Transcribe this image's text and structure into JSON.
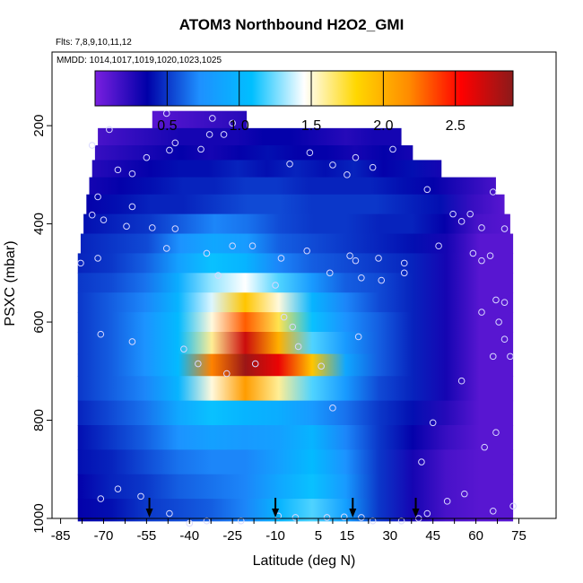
{
  "chart_data": {
    "type": "heatmap",
    "title": "ATOM3 Northbound H2O2_GMI",
    "flights_label": "Flts: 7,8,9,10,11,12",
    "dates_label": "MMDD: 1014,1017,1019,1020,1023,1025",
    "xlabel": "Latitude (deg N)",
    "ylabel": "PSXC (mbar)",
    "xlim": [
      -88,
      88
    ],
    "ylim": [
      1000,
      50
    ],
    "y_reversed": true,
    "x_ticks": [
      -85,
      -70,
      -55,
      -40,
      -25,
      -10,
      5,
      15,
      30,
      45,
      60,
      75
    ],
    "y_ticks": [
      200,
      400,
      600,
      800,
      1000
    ],
    "colorbar": {
      "min": 0.0,
      "max": 2.9,
      "ticks": [
        0.5,
        1.0,
        1.5,
        2.0,
        2.5
      ],
      "tick_labels": [
        "0.5",
        "1.0",
        "1.5",
        "2.0",
        "2.5"
      ],
      "colors": [
        "#7a1fe0",
        "#0000a8",
        "#1e90ff",
        "#00bfff",
        "#ffffff",
        "#ffd700",
        "#ff8c00",
        "#ff0000",
        "#8b1a1a"
      ]
    },
    "grid": false,
    "surface_markers_lat": [
      -54,
      -10,
      17,
      39
    ],
    "field": {
      "lat_range": [
        -79,
        73
      ],
      "rows": [
        {
          "p_top": 170,
          "p_bot": 205,
          "lat_min": -53,
          "lat_max": -20,
          "values": [
            0.1,
            0.15,
            0.2,
            0.25
          ]
        },
        {
          "p_top": 205,
          "p_bot": 240,
          "lat_min": -72,
          "lat_max": 34,
          "values": [
            0.15,
            0.2,
            0.25,
            0.3,
            0.3,
            0.3,
            0.35,
            0.35,
            0.3,
            0.25,
            0.3,
            0.3
          ]
        },
        {
          "p_top": 240,
          "p_bot": 270,
          "lat_min": -73,
          "lat_max": 38,
          "values": [
            0.2,
            0.25,
            0.3,
            0.35,
            0.3,
            0.35,
            0.4,
            0.35,
            0.35,
            0.3,
            0.35,
            0.3
          ]
        },
        {
          "p_top": 270,
          "p_bot": 305,
          "lat_min": -74,
          "lat_max": 48,
          "values": [
            0.25,
            0.3,
            0.35,
            0.4,
            0.4,
            0.45,
            0.4,
            0.45,
            0.4,
            0.45,
            0.35,
            0.4,
            0.3
          ]
        },
        {
          "p_top": 305,
          "p_bot": 340,
          "lat_min": -75,
          "lat_max": 67,
          "values": [
            0.3,
            0.35,
            0.4,
            0.45,
            0.45,
            0.5,
            0.5,
            0.45,
            0.45,
            0.45,
            0.4,
            0.35,
            0.25,
            0.15
          ]
        },
        {
          "p_top": 340,
          "p_bot": 380,
          "lat_min": -76,
          "lat_max": 70,
          "values": [
            0.35,
            0.4,
            0.45,
            0.45,
            0.5,
            0.55,
            0.55,
            0.5,
            0.5,
            0.5,
            0.45,
            0.4,
            0.2,
            0.1
          ]
        },
        {
          "p_top": 380,
          "p_bot": 420,
          "lat_min": -77,
          "lat_max": 72,
          "values": [
            0.4,
            0.45,
            0.5,
            0.6,
            0.7,
            0.65,
            0.55,
            0.5,
            0.5,
            0.45,
            0.45,
            0.35,
            0.15,
            0.1
          ]
        },
        {
          "p_top": 420,
          "p_bot": 460,
          "lat_min": -78,
          "lat_max": 73,
          "values": [
            0.45,
            0.5,
            0.55,
            0.75,
            0.9,
            0.8,
            0.6,
            0.55,
            0.5,
            0.45,
            0.4,
            0.3,
            0.1,
            0.1
          ]
        },
        {
          "p_top": 460,
          "p_bot": 500,
          "lat_min": -79,
          "lat_max": 73,
          "values": [
            0.45,
            0.5,
            0.6,
            0.85,
            1.1,
            1.0,
            0.7,
            0.6,
            0.55,
            0.5,
            0.45,
            0.3,
            0.1,
            0.1
          ]
        },
        {
          "p_top": 500,
          "p_bot": 540,
          "lat_min": -79,
          "lat_max": 73,
          "values": [
            0.5,
            0.55,
            0.65,
            0.95,
            1.3,
            1.45,
            1.2,
            0.8,
            0.6,
            0.55,
            0.45,
            0.3,
            0.1,
            0.1
          ]
        },
        {
          "p_top": 540,
          "p_bot": 580,
          "lat_min": -79,
          "lat_max": 73,
          "values": [
            0.5,
            0.6,
            0.7,
            1.0,
            1.4,
            1.9,
            1.5,
            1.0,
            0.7,
            0.55,
            0.45,
            0.3,
            0.1,
            0.1
          ]
        },
        {
          "p_top": 580,
          "p_bot": 620,
          "lat_min": -79,
          "lat_max": 73,
          "values": [
            0.5,
            0.6,
            0.75,
            1.05,
            1.5,
            2.3,
            1.7,
            1.1,
            0.75,
            0.6,
            0.45,
            0.3,
            0.1,
            0.1
          ]
        },
        {
          "p_top": 620,
          "p_bot": 665,
          "lat_min": -79,
          "lat_max": 73,
          "values": [
            0.5,
            0.6,
            0.75,
            1.05,
            1.6,
            2.7,
            2.0,
            1.2,
            0.8,
            0.6,
            0.45,
            0.3,
            0.1,
            0.1
          ]
        },
        {
          "p_top": 665,
          "p_bot": 710,
          "lat_min": -79,
          "lat_max": 73,
          "values": [
            0.5,
            0.6,
            0.75,
            1.05,
            2.2,
            2.85,
            2.6,
            1.9,
            0.9,
            0.6,
            0.45,
            0.3,
            0.1,
            0.1
          ]
        },
        {
          "p_top": 710,
          "p_bot": 760,
          "lat_min": -79,
          "lat_max": 73,
          "values": [
            0.5,
            0.6,
            0.7,
            1.0,
            1.5,
            2.1,
            1.6,
            1.2,
            0.8,
            0.55,
            0.45,
            0.3,
            0.1,
            0.1
          ]
        },
        {
          "p_top": 760,
          "p_bot": 810,
          "lat_min": -79,
          "lat_max": 73,
          "values": [
            0.45,
            0.55,
            0.65,
            0.9,
            1.1,
            1.0,
            0.95,
            0.8,
            0.65,
            0.5,
            0.4,
            0.25,
            0.1,
            0.1
          ]
        },
        {
          "p_top": 810,
          "p_bot": 860,
          "lat_min": -79,
          "lat_max": 73,
          "values": [
            0.4,
            0.5,
            0.6,
            0.75,
            0.85,
            0.8,
            0.85,
            1.0,
            0.7,
            0.5,
            0.35,
            0.2,
            0.1,
            0.1
          ]
        },
        {
          "p_top": 860,
          "p_bot": 910,
          "lat_min": -79,
          "lat_max": 73,
          "values": [
            0.4,
            0.45,
            0.55,
            0.65,
            0.7,
            0.7,
            0.85,
            1.05,
            0.75,
            0.5,
            0.3,
            0.15,
            0.1,
            0.1
          ]
        },
        {
          "p_top": 910,
          "p_bot": 960,
          "lat_min": -79,
          "lat_max": 73,
          "values": [
            0.35,
            0.45,
            0.5,
            0.6,
            0.65,
            0.7,
            0.9,
            1.1,
            0.8,
            0.5,
            0.3,
            0.15,
            0.1,
            0.1
          ]
        },
        {
          "p_top": 960,
          "p_bot": 1005,
          "lat_min": -79,
          "lat_max": 73,
          "values": [
            0.35,
            0.4,
            0.5,
            0.55,
            0.6,
            0.7,
            1.0,
            1.2,
            0.85,
            0.5,
            0.3,
            0.15,
            0.1,
            0.1
          ]
        }
      ]
    },
    "obs_points": [
      [
        -48,
        175
      ],
      [
        -32,
        185
      ],
      [
        -25,
        195
      ],
      [
        -68,
        208
      ],
      [
        -33,
        218
      ],
      [
        -45,
        235
      ],
      [
        -28,
        218
      ],
      [
        -74,
        240
      ],
      [
        -55,
        265
      ],
      [
        -47,
        250
      ],
      [
        -36,
        248
      ],
      [
        -5,
        278
      ],
      [
        2,
        255
      ],
      [
        10,
        280
      ],
      [
        15,
        300
      ],
      [
        18,
        265
      ],
      [
        24,
        285
      ],
      [
        -65,
        290
      ],
      [
        -60,
        298
      ],
      [
        31,
        248
      ],
      [
        -72,
        345
      ],
      [
        -60,
        365
      ],
      [
        -74,
        382
      ],
      [
        -70,
        392
      ],
      [
        -62,
        405
      ],
      [
        -45,
        410
      ],
      [
        -53,
        408
      ],
      [
        43,
        330
      ],
      [
        52,
        380
      ],
      [
        55,
        395
      ],
      [
        58,
        380
      ],
      [
        62,
        408
      ],
      [
        66,
        335
      ],
      [
        70,
        410
      ],
      [
        -48,
        450
      ],
      [
        -34,
        460
      ],
      [
        -18,
        445
      ],
      [
        -25,
        445
      ],
      [
        -8,
        470
      ],
      [
        1,
        455
      ],
      [
        9,
        500
      ],
      [
        16,
        465
      ],
      [
        20,
        510
      ],
      [
        26,
        470
      ],
      [
        35,
        480
      ],
      [
        47,
        445
      ],
      [
        59,
        460
      ],
      [
        62,
        475
      ],
      [
        65,
        465
      ],
      [
        -78,
        480
      ],
      [
        -72,
        470
      ],
      [
        -30,
        505
      ],
      [
        -10,
        525
      ],
      [
        18,
        475
      ],
      [
        27,
        515
      ],
      [
        35,
        500
      ],
      [
        -71,
        625
      ],
      [
        -60,
        640
      ],
      [
        -42,
        655
      ],
      [
        -37,
        685
      ],
      [
        -27,
        705
      ],
      [
        -17,
        685
      ],
      [
        -7,
        590
      ],
      [
        -4,
        610
      ],
      [
        -2,
        650
      ],
      [
        6,
        690
      ],
      [
        10,
        775
      ],
      [
        19,
        630
      ],
      [
        67,
        555
      ],
      [
        70,
        560
      ],
      [
        62,
        580
      ],
      [
        68,
        600
      ],
      [
        70,
        635
      ],
      [
        66,
        670
      ],
      [
        72,
        670
      ],
      [
        55,
        720
      ],
      [
        45,
        805
      ],
      [
        41,
        885
      ],
      [
        63,
        855
      ],
      [
        67,
        825
      ],
      [
        -71,
        960
      ],
      [
        -65,
        940
      ],
      [
        -57,
        955
      ],
      [
        -47,
        990
      ],
      [
        -40,
        1010
      ],
      [
        -34,
        1005
      ],
      [
        -22,
        1005
      ],
      [
        -9,
        995
      ],
      [
        -3,
        998
      ],
      [
        8,
        998
      ],
      [
        14,
        997
      ],
      [
        20,
        998
      ],
      [
        24,
        1005
      ],
      [
        34,
        1005
      ],
      [
        40,
        1000
      ],
      [
        43,
        990
      ],
      [
        50,
        965
      ],
      [
        56,
        950
      ],
      [
        66,
        985
      ],
      [
        73,
        975
      ]
    ]
  }
}
